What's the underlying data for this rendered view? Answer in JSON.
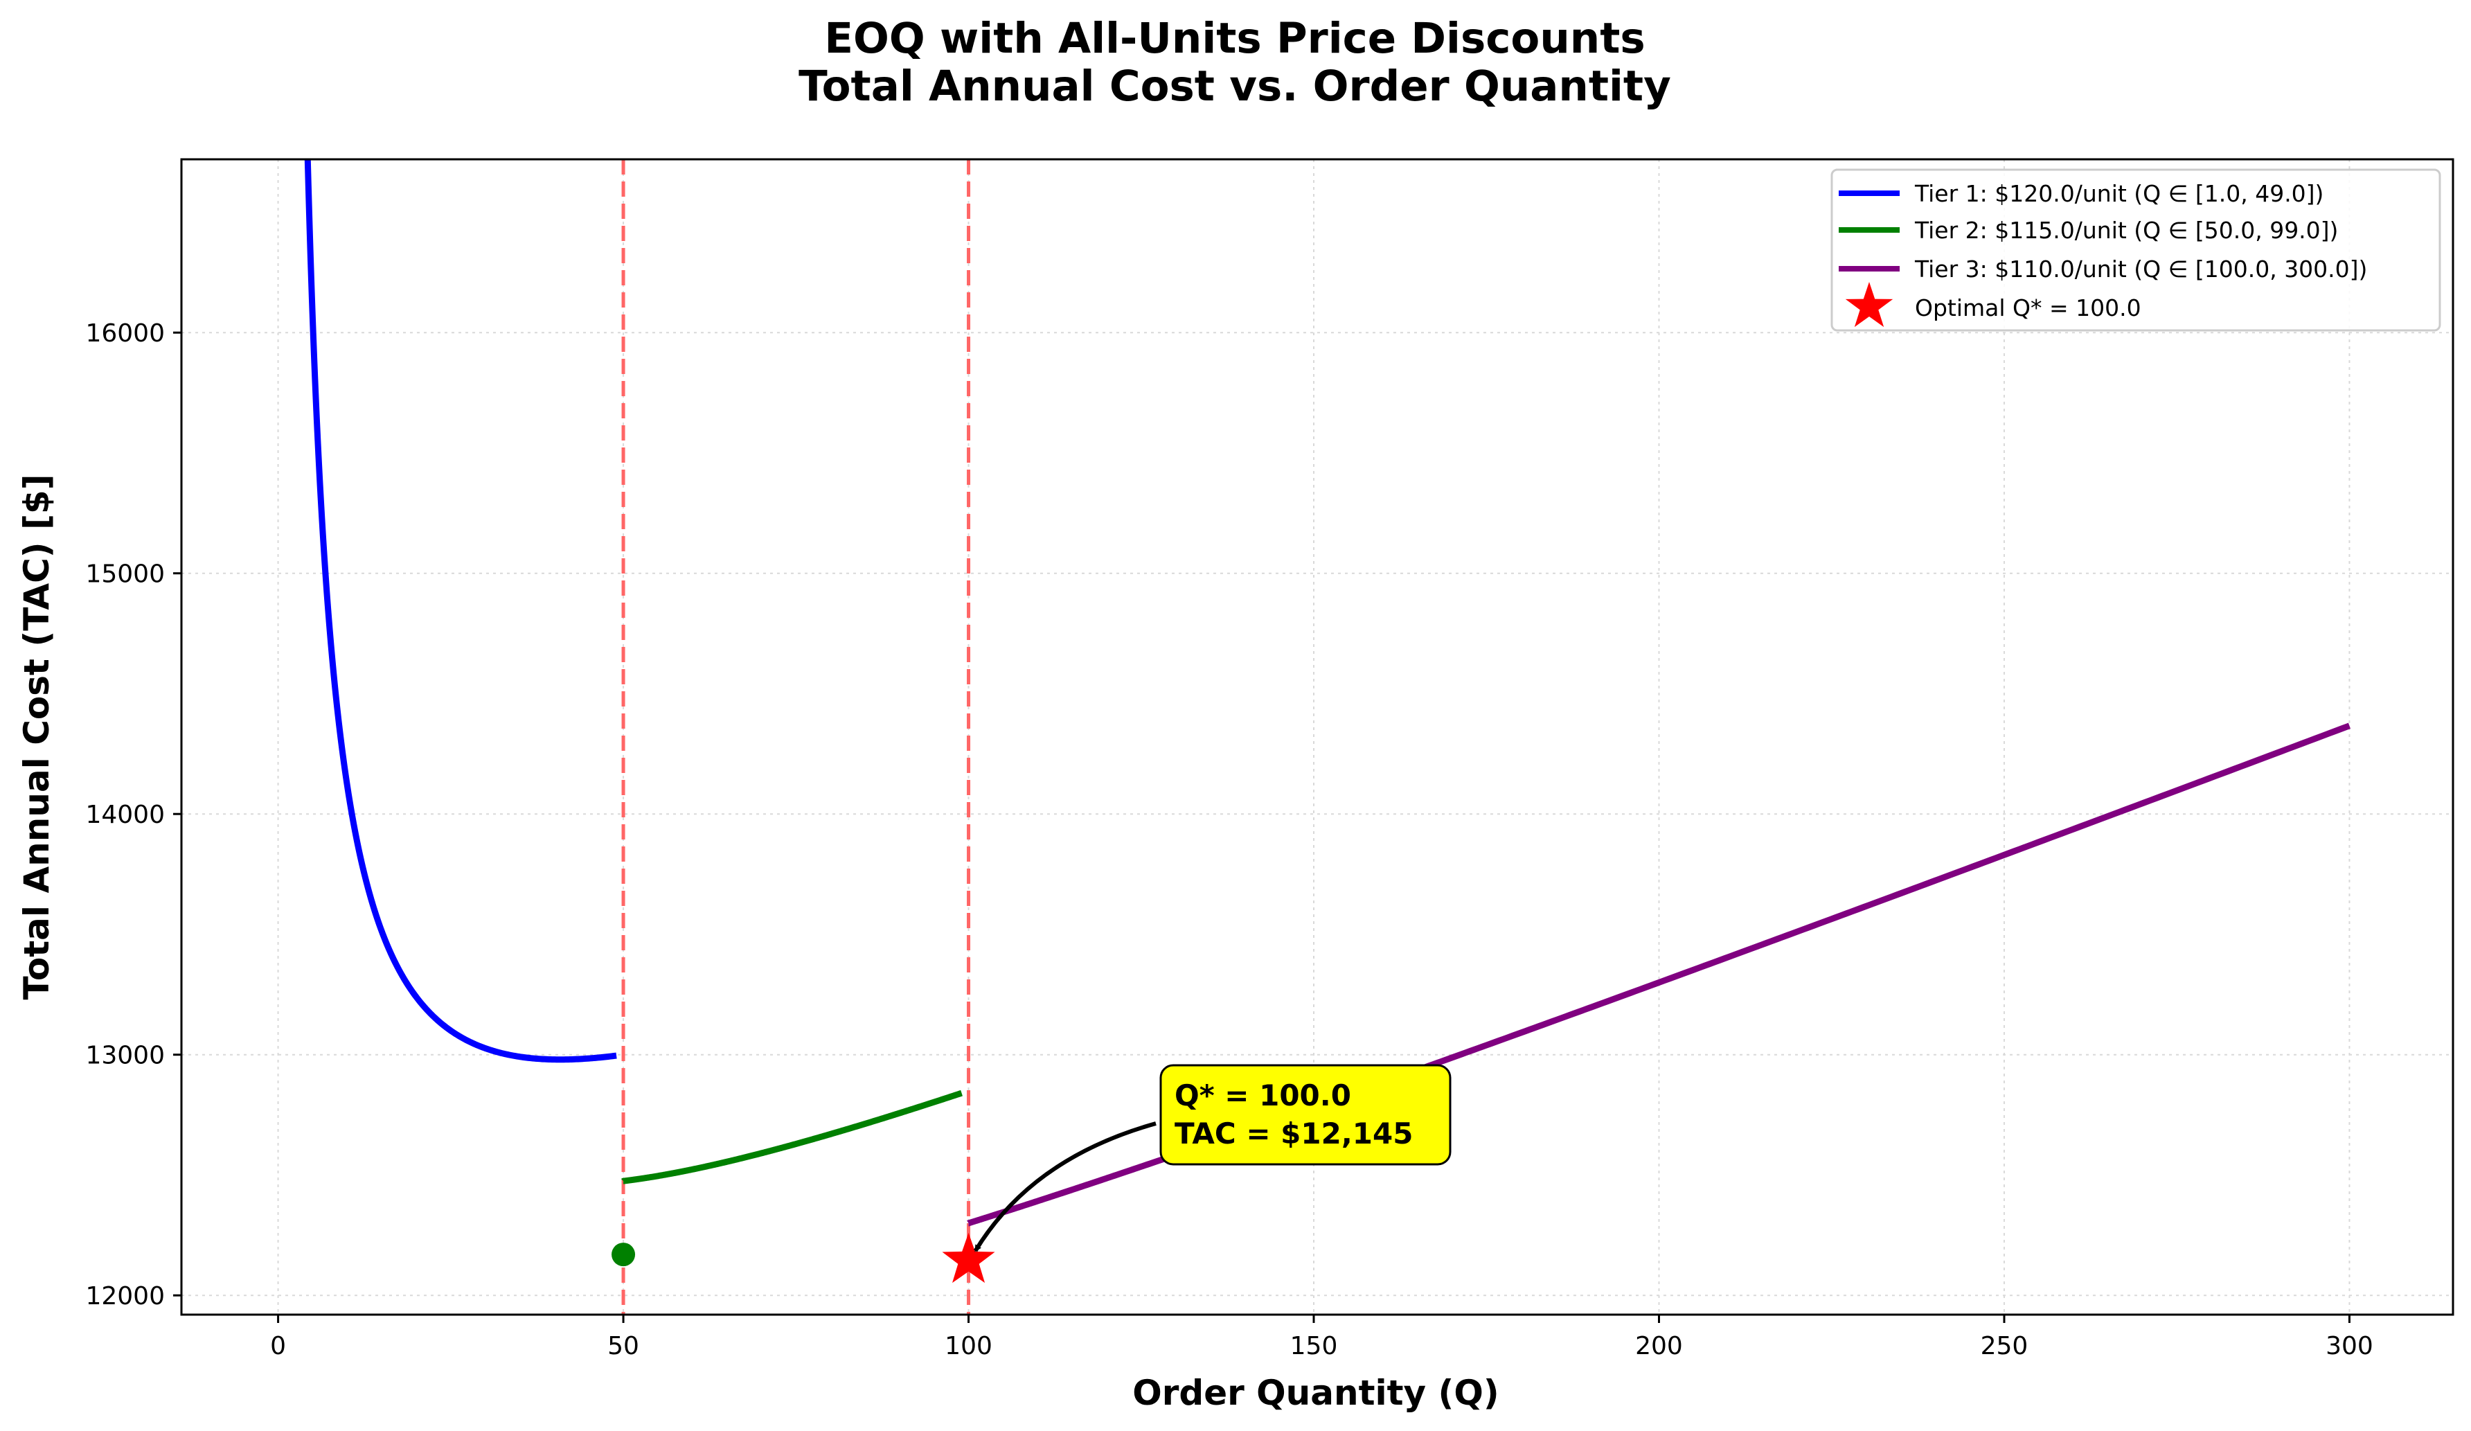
{
  "chart_data": {
    "type": "line",
    "title_line1": "EOQ with All-Units Price Discounts",
    "title_line2": "Total Annual Cost vs. Order Quantity",
    "xlabel": "Order Quantity (Q)",
    "ylabel": "Total Annual Cost (TAC) [$]",
    "xlim": [
      -14,
      315
    ],
    "ylim": [
      11920,
      16720
    ],
    "xticks": [
      0,
      50,
      100,
      150,
      200,
      250,
      300
    ],
    "yticks": [
      12000,
      13000,
      14000,
      15000,
      16000
    ],
    "grid": true,
    "legend_position": "top-right",
    "breakpoints": [
      50,
      100
    ],
    "series": [
      {
        "name": "Tier 1: $120.0/unit (Q ∈ [1.0, 49.0])",
        "color": "#0000ff",
        "unit_price": 120,
        "range": [
          1,
          49
        ]
      },
      {
        "name": "Tier 2: $115.0/unit (Q ∈ [50.0, 99.0])",
        "color": "#008000",
        "unit_price": 115,
        "range": [
          50,
          99
        ]
      },
      {
        "name": "Tier 3: $110.0/unit (Q ∈ [100.0, 300.0])",
        "color": "#800080",
        "unit_price": 110,
        "range": [
          100,
          300
        ]
      }
    ],
    "markers": {
      "tier_start": {
        "x": 50,
        "y": 12170,
        "color": "#008000"
      },
      "optimal": {
        "name": "Optimal Q* = 100.0",
        "x": 100,
        "y": 12145,
        "color": "#ff0000"
      }
    },
    "annotation": {
      "line1": "Q* = 100.0",
      "line2": "TAC = $12,145",
      "box_color": "#ffff00"
    },
    "colors": {
      "breakpoint_line": "#ff6666"
    }
  }
}
